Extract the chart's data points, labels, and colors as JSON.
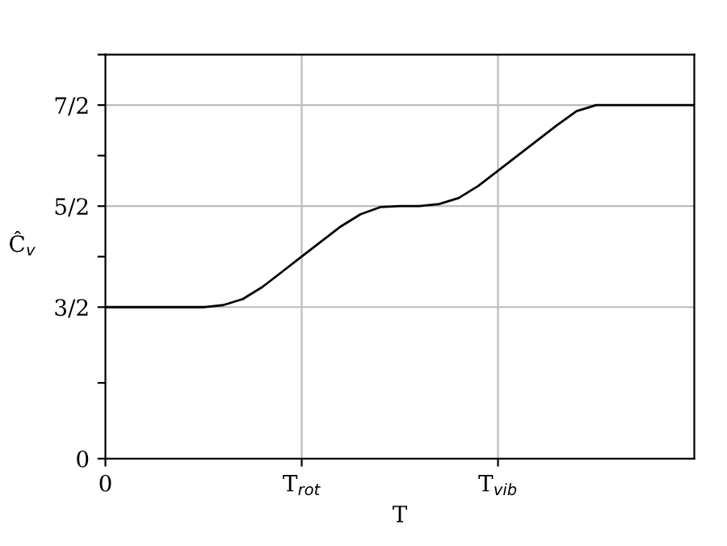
{
  "chart_data": {
    "type": "line",
    "xlabel": "T",
    "ylabel": "Ĉ$_{v}$",
    "categories": [
      "0",
      null,
      null,
      null,
      null,
      null,
      null,
      null,
      null,
      null,
      "T$_{rot}$",
      null,
      null,
      null,
      null,
      null,
      null,
      null,
      null,
      null,
      "T$_{vib}$",
      null,
      null,
      null,
      null,
      null,
      null,
      null,
      null,
      null,
      null
    ],
    "series": [
      {
        "color": "#000000",
        "values": [
          1.5,
          1.5,
          1.5,
          1.5,
          1.5,
          1.5,
          1.52,
          1.58,
          1.7,
          1.85,
          2.0,
          2.15,
          2.3,
          2.42,
          2.49,
          2.5,
          2.5,
          2.52,
          2.58,
          2.7,
          2.85,
          3.0,
          3.15,
          3.3,
          3.44,
          3.5,
          3.5,
          3.5,
          3.5,
          3.5,
          3.5
        ]
      }
    ],
    "ylim": [
      0,
      4
    ],
    "yticks": [
      0,
      {
        "value": 0.75,
        "label": null
      },
      {
        "value": 1.5,
        "label": "3/2"
      },
      {
        "value": 2,
        "label": null
      },
      {
        "value": 2.5,
        "label": "5/2"
      },
      {
        "value": 3,
        "label": null
      },
      {
        "value": 3.5,
        "label": "7/2"
      },
      {
        "value": 4,
        "label": null
      }
    ],
    "grid": true,
    "marker": "none",
    "line_style": "solid"
  }
}
